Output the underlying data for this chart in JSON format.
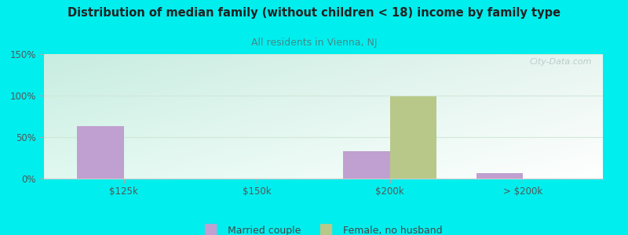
{
  "title": "Distribution of median family (without children < 18) income by family type",
  "subtitle": "All residents in Vienna, NJ",
  "categories": [
    "$125k",
    "$150k",
    "$200k",
    "> $200k"
  ],
  "married_couple": [
    63,
    0,
    33,
    7
  ],
  "female_no_husband": [
    0,
    0,
    99,
    0
  ],
  "married_color": "#c0a0d0",
  "female_color": "#b8c888",
  "ylim": [
    0,
    150
  ],
  "yticks": [
    0,
    50,
    100,
    150
  ],
  "ytick_labels": [
    "0%",
    "50%",
    "100%",
    "150%"
  ],
  "bg_color": "#00eeee",
  "plot_bg_topleft": "#c8ede0",
  "plot_bg_topright": "#e8f5f0",
  "plot_bg_bottom": "#f8fffc",
  "title_color": "#222222",
  "subtitle_color": "#448888",
  "bar_width": 0.35,
  "grid_color": "#d0e8d8",
  "watermark": "City-Data.com"
}
